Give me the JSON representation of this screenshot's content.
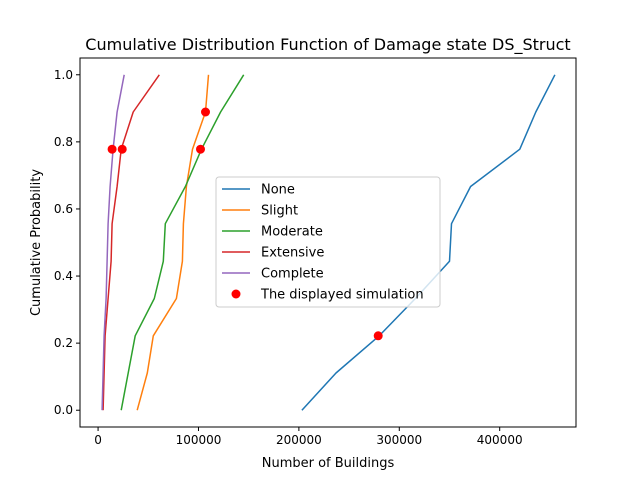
{
  "chart_data": {
    "type": "line",
    "title": "Cumulative Distribution Function of Damage state DS_Struct",
    "xlabel": "Number of Buildings",
    "ylabel": "Cumulative Probability",
    "xlim": [
      -18000,
      476000
    ],
    "ylim": [
      -0.05,
      1.05
    ],
    "xticks": [
      0,
      100000,
      200000,
      300000,
      400000
    ],
    "xtick_labels": [
      "0",
      "100000",
      "200000",
      "300000",
      "400000"
    ],
    "yticks": [
      0.0,
      0.2,
      0.4,
      0.6,
      0.8,
      1.0
    ],
    "ytick_labels": [
      "0.0",
      "0.2",
      "0.4",
      "0.6",
      "0.8",
      "1.0"
    ],
    "grid": false,
    "legend_position": "center",
    "series": [
      {
        "name": "None",
        "color": "#1f77b4",
        "x": [
          203000,
          237000,
          280000,
          316000,
          350000,
          352000,
          371000,
          420000,
          436000,
          455000
        ],
        "y": [
          0.0,
          0.111,
          0.222,
          0.333,
          0.444,
          0.556,
          0.667,
          0.778,
          0.889,
          1.0
        ]
      },
      {
        "name": "Slight",
        "color": "#ff7f0e",
        "x": [
          39000,
          49000,
          55000,
          78000,
          84000,
          85000,
          88000,
          94000,
          107000,
          110000
        ],
        "y": [
          0.0,
          0.111,
          0.222,
          0.333,
          0.444,
          0.556,
          0.667,
          0.778,
          0.889,
          1.0
        ]
      },
      {
        "name": "Moderate",
        "color": "#2ca02c",
        "x": [
          23000,
          30000,
          37000,
          56000,
          65000,
          67000,
          87000,
          103000,
          122000,
          145000
        ],
        "y": [
          0.0,
          0.111,
          0.222,
          0.333,
          0.444,
          0.556,
          0.667,
          0.778,
          0.889,
          1.0
        ]
      },
      {
        "name": "Extensive",
        "color": "#d62728",
        "x": [
          5000,
          6000,
          7000,
          10000,
          13000,
          14000,
          19000,
          23000,
          35000,
          61000
        ],
        "y": [
          0.0,
          0.111,
          0.222,
          0.333,
          0.444,
          0.556,
          0.667,
          0.778,
          0.889,
          1.0
        ]
      },
      {
        "name": "Complete",
        "color": "#9467bd",
        "x": [
          4000,
          5000,
          6000,
          8000,
          9000,
          10000,
          12000,
          15000,
          19000,
          26000
        ],
        "y": [
          0.0,
          0.111,
          0.222,
          0.333,
          0.444,
          0.556,
          0.667,
          0.778,
          0.889,
          1.0
        ]
      }
    ],
    "markers": {
      "name": "The displayed simulation",
      "color": "#ff0000",
      "points": [
        {
          "x": 279000,
          "y": 0.222
        },
        {
          "x": 14000,
          "y": 0.778
        },
        {
          "x": 24000,
          "y": 0.778
        },
        {
          "x": 102000,
          "y": 0.778
        },
        {
          "x": 107000,
          "y": 0.889
        }
      ]
    }
  }
}
